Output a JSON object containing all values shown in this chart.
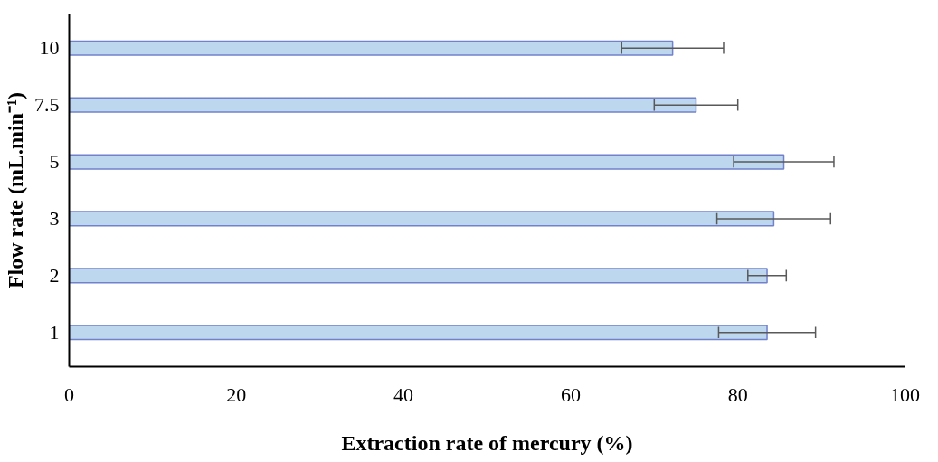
{
  "chart_data": {
    "type": "bar",
    "orientation": "horizontal",
    "xlabel": "Extraction rate of mercury (%)",
    "ylabel": "Flow rate (mL.min⁻¹)",
    "categories": [
      "10",
      "7.5",
      "5",
      "3",
      "2",
      "1"
    ],
    "values": [
      72.2,
      75.0,
      85.5,
      84.3,
      83.5,
      83.5
    ],
    "errors": [
      6.1,
      5.0,
      6.0,
      6.8,
      2.3,
      5.8
    ],
    "color": "#bdd7ee",
    "xlim": [
      0,
      100
    ],
    "xticks": [
      0,
      20,
      40,
      60,
      80,
      100
    ],
    "grid": false
  }
}
